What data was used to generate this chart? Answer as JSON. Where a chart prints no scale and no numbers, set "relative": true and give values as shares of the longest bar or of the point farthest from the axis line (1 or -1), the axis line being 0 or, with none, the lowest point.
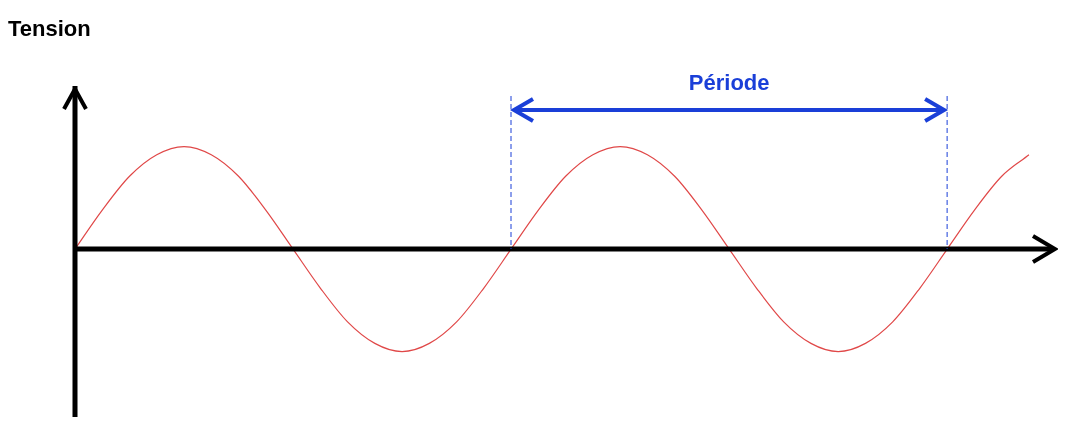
{
  "chart_data": {
    "type": "line",
    "ylabel": "Tension",
    "relative": true,
    "categories": [
      null,
      null,
      null,
      null,
      null,
      null,
      null,
      null,
      null,
      null,
      null,
      null,
      null,
      null,
      null,
      null,
      null,
      null,
      null,
      null,
      null,
      null,
      null,
      null,
      null,
      null,
      null,
      null,
      null,
      null,
      null,
      null,
      null,
      null,
      null,
      null
    ],
    "series": [
      {
        "color": "#e04848",
        "values": [
          0,
          0.38,
          0.71,
          0.92,
          1,
          0.92,
          0.71,
          0.38,
          0,
          -0.38,
          -0.71,
          -0.92,
          -1,
          -0.92,
          -0.71,
          -0.38,
          0,
          0.38,
          0.71,
          0.92,
          1,
          0.92,
          0.71,
          0.38,
          0,
          -0.38,
          -0.71,
          -0.92,
          -1,
          -0.92,
          -0.71,
          -0.38,
          0,
          0.38,
          0.71,
          0.92
        ]
      }
    ],
    "annotations": [
      "Période"
    ],
    "grid": false,
    "legend": false,
    "marker": "none",
    "line_style": "solid"
  }
}
